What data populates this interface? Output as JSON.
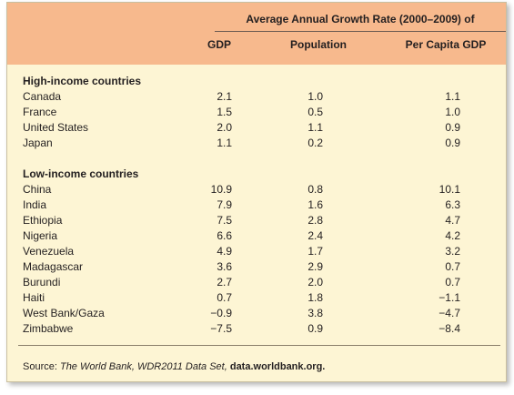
{
  "header": {
    "title": "Average Annual Growth Rate (2000–2009) of",
    "columns": [
      "GDP",
      "Population",
      "Per Capita GDP"
    ]
  },
  "groups": [
    {
      "name": "High-income countries",
      "rows": [
        [
          "Canada",
          "2.1",
          "1.0",
          "1.1"
        ],
        [
          "France",
          "1.5",
          "0.5",
          "1.0"
        ],
        [
          "United States",
          "2.0",
          "1.1",
          "0.9"
        ],
        [
          "Japan",
          "1.1",
          "0.2",
          "0.9"
        ]
      ]
    },
    {
      "name": "Low-income countries",
      "rows": [
        [
          "China",
          "10.9",
          "0.8",
          "10.1"
        ],
        [
          "India",
          "7.9",
          "1.6",
          "6.3"
        ],
        [
          "Ethiopia",
          "7.5",
          "2.8",
          "4.7"
        ],
        [
          "Nigeria",
          "6.6",
          "2.4",
          "4.2"
        ],
        [
          "Venezuela",
          "4.9",
          "1.7",
          "3.2"
        ],
        [
          "Madagascar",
          "3.6",
          "2.9",
          "0.7"
        ],
        [
          "Burundi",
          "2.7",
          "2.0",
          "0.7"
        ],
        [
          "Haiti",
          "0.7",
          "1.8",
          "−1.1"
        ],
        [
          "West Bank/Gaza",
          "−0.9",
          "3.8",
          "−4.7"
        ],
        [
          "Zimbabwe",
          "−7.5",
          "0.9",
          "−8.4"
        ]
      ]
    }
  ],
  "source": {
    "label": "Source: ",
    "text": "The World Bank, WDR2011 Data Set, ",
    "link": "data.worldbank.org."
  }
}
